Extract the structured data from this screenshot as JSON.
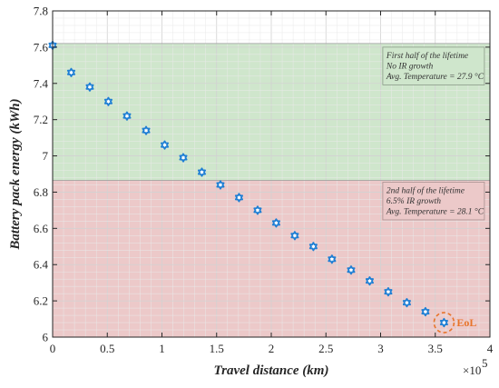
{
  "chart_data": {
    "type": "scatter",
    "xlabel": "Travel distance (km)",
    "ylabel": "Battery pack energy (kWh)",
    "x_multiplier_label": "×10",
    "x_multiplier_exp": "5",
    "xlim": [
      0,
      400000
    ],
    "ylim": [
      6,
      7.8
    ],
    "x_ticks": [
      0,
      50000,
      100000,
      150000,
      200000,
      250000,
      300000,
      350000,
      400000
    ],
    "x_tick_labels": [
      "0",
      "0.5",
      "1",
      "1.5",
      "2",
      "2.5",
      "3",
      "3.5",
      "4"
    ],
    "y_ticks": [
      6,
      6.2,
      6.4,
      6.6,
      6.8,
      7,
      7.2,
      7.4,
      7.6,
      7.8
    ],
    "y_tick_labels": [
      "6",
      "6.2",
      "6.4",
      "6.6",
      "6.8",
      "7",
      "7.2",
      "7.4",
      "7.6",
      "7.8"
    ],
    "grid": true,
    "marker_color": "#1f7fd4",
    "series": [
      {
        "x": [
          0,
          17000,
          34000,
          51000,
          68000,
          85500,
          102500,
          119500,
          136500,
          153500,
          170500,
          187500,
          204500,
          221500,
          238500,
          255500,
          273000,
          290000,
          307000,
          324000,
          341000,
          358000
        ],
        "y": [
          7.61,
          7.46,
          7.38,
          7.3,
          7.22,
          7.14,
          7.06,
          6.99,
          6.91,
          6.84,
          6.77,
          6.7,
          6.63,
          6.56,
          6.5,
          6.43,
          6.37,
          6.31,
          6.25,
          6.19,
          6.14,
          6.08
        ]
      }
    ],
    "regions": [
      {
        "y0": 6.865,
        "y1": 7.62,
        "color": "#cfe6cc"
      },
      {
        "y0": 6.0,
        "y1": 6.865,
        "color": "#ecc9c9"
      }
    ],
    "annotations": [
      {
        "lines": [
          "First half of the lifetime",
          "No IR growth",
          "Avg. Temperature = 27.9 °C"
        ],
        "x": 302000,
        "y": 7.6,
        "box_fill": "#cfe6cc",
        "box_stroke": "#8a9a88"
      },
      {
        "lines": [
          "2nd half of the lifetime",
          "6.5% IR growth",
          "Avg. Temperature = 28.1 °C"
        ],
        "x": 302000,
        "y": 6.855,
        "box_fill": "#ecc9c9",
        "box_stroke": "#a89090"
      }
    ],
    "eol": {
      "label": "EoL",
      "x": 358000,
      "y": 6.08,
      "color": "#e8742a"
    }
  }
}
